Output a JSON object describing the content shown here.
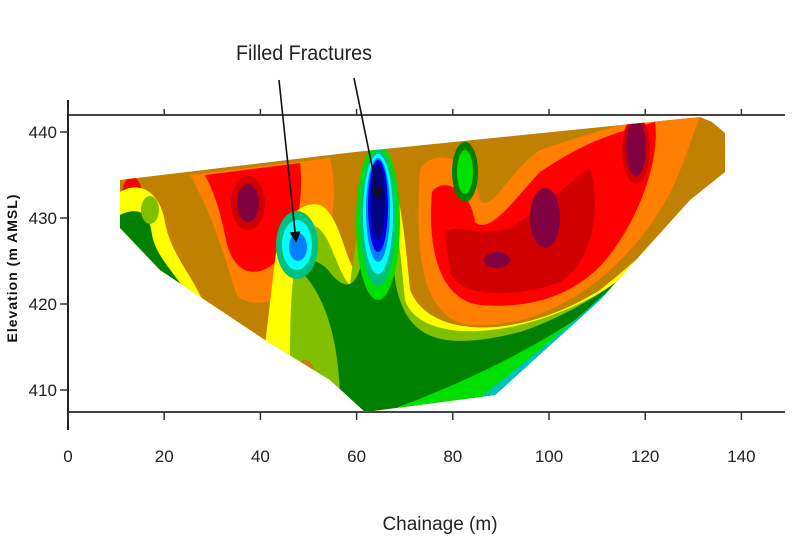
{
  "chart_data": {
    "type": "heatmap",
    "title": "",
    "xlabel": "Chainage (m)",
    "ylabel": "Elevation (m AMSL)",
    "xlim": [
      0,
      150
    ],
    "ylim": [
      407,
      442
    ],
    "x_ticks": [
      0,
      20,
      40,
      60,
      80,
      100,
      120,
      140
    ],
    "y_ticks": [
      410,
      420,
      430,
      440
    ],
    "grid": false,
    "legend": "none",
    "colormap": [
      "#000080",
      "#0000e0",
      "#0080ff",
      "#00ffff",
      "#00c080",
      "#00e000",
      "#008000",
      "#80c000",
      "#ffff00",
      "#c08000",
      "#ff8000",
      "#ff0000",
      "#d00000",
      "#800040"
    ],
    "annotations": [
      {
        "text": "Filled Fractures",
        "targets": [
          {
            "x": 47,
            "y": 427
          },
          {
            "x": 65,
            "y": 432
          }
        ]
      }
    ]
  }
}
